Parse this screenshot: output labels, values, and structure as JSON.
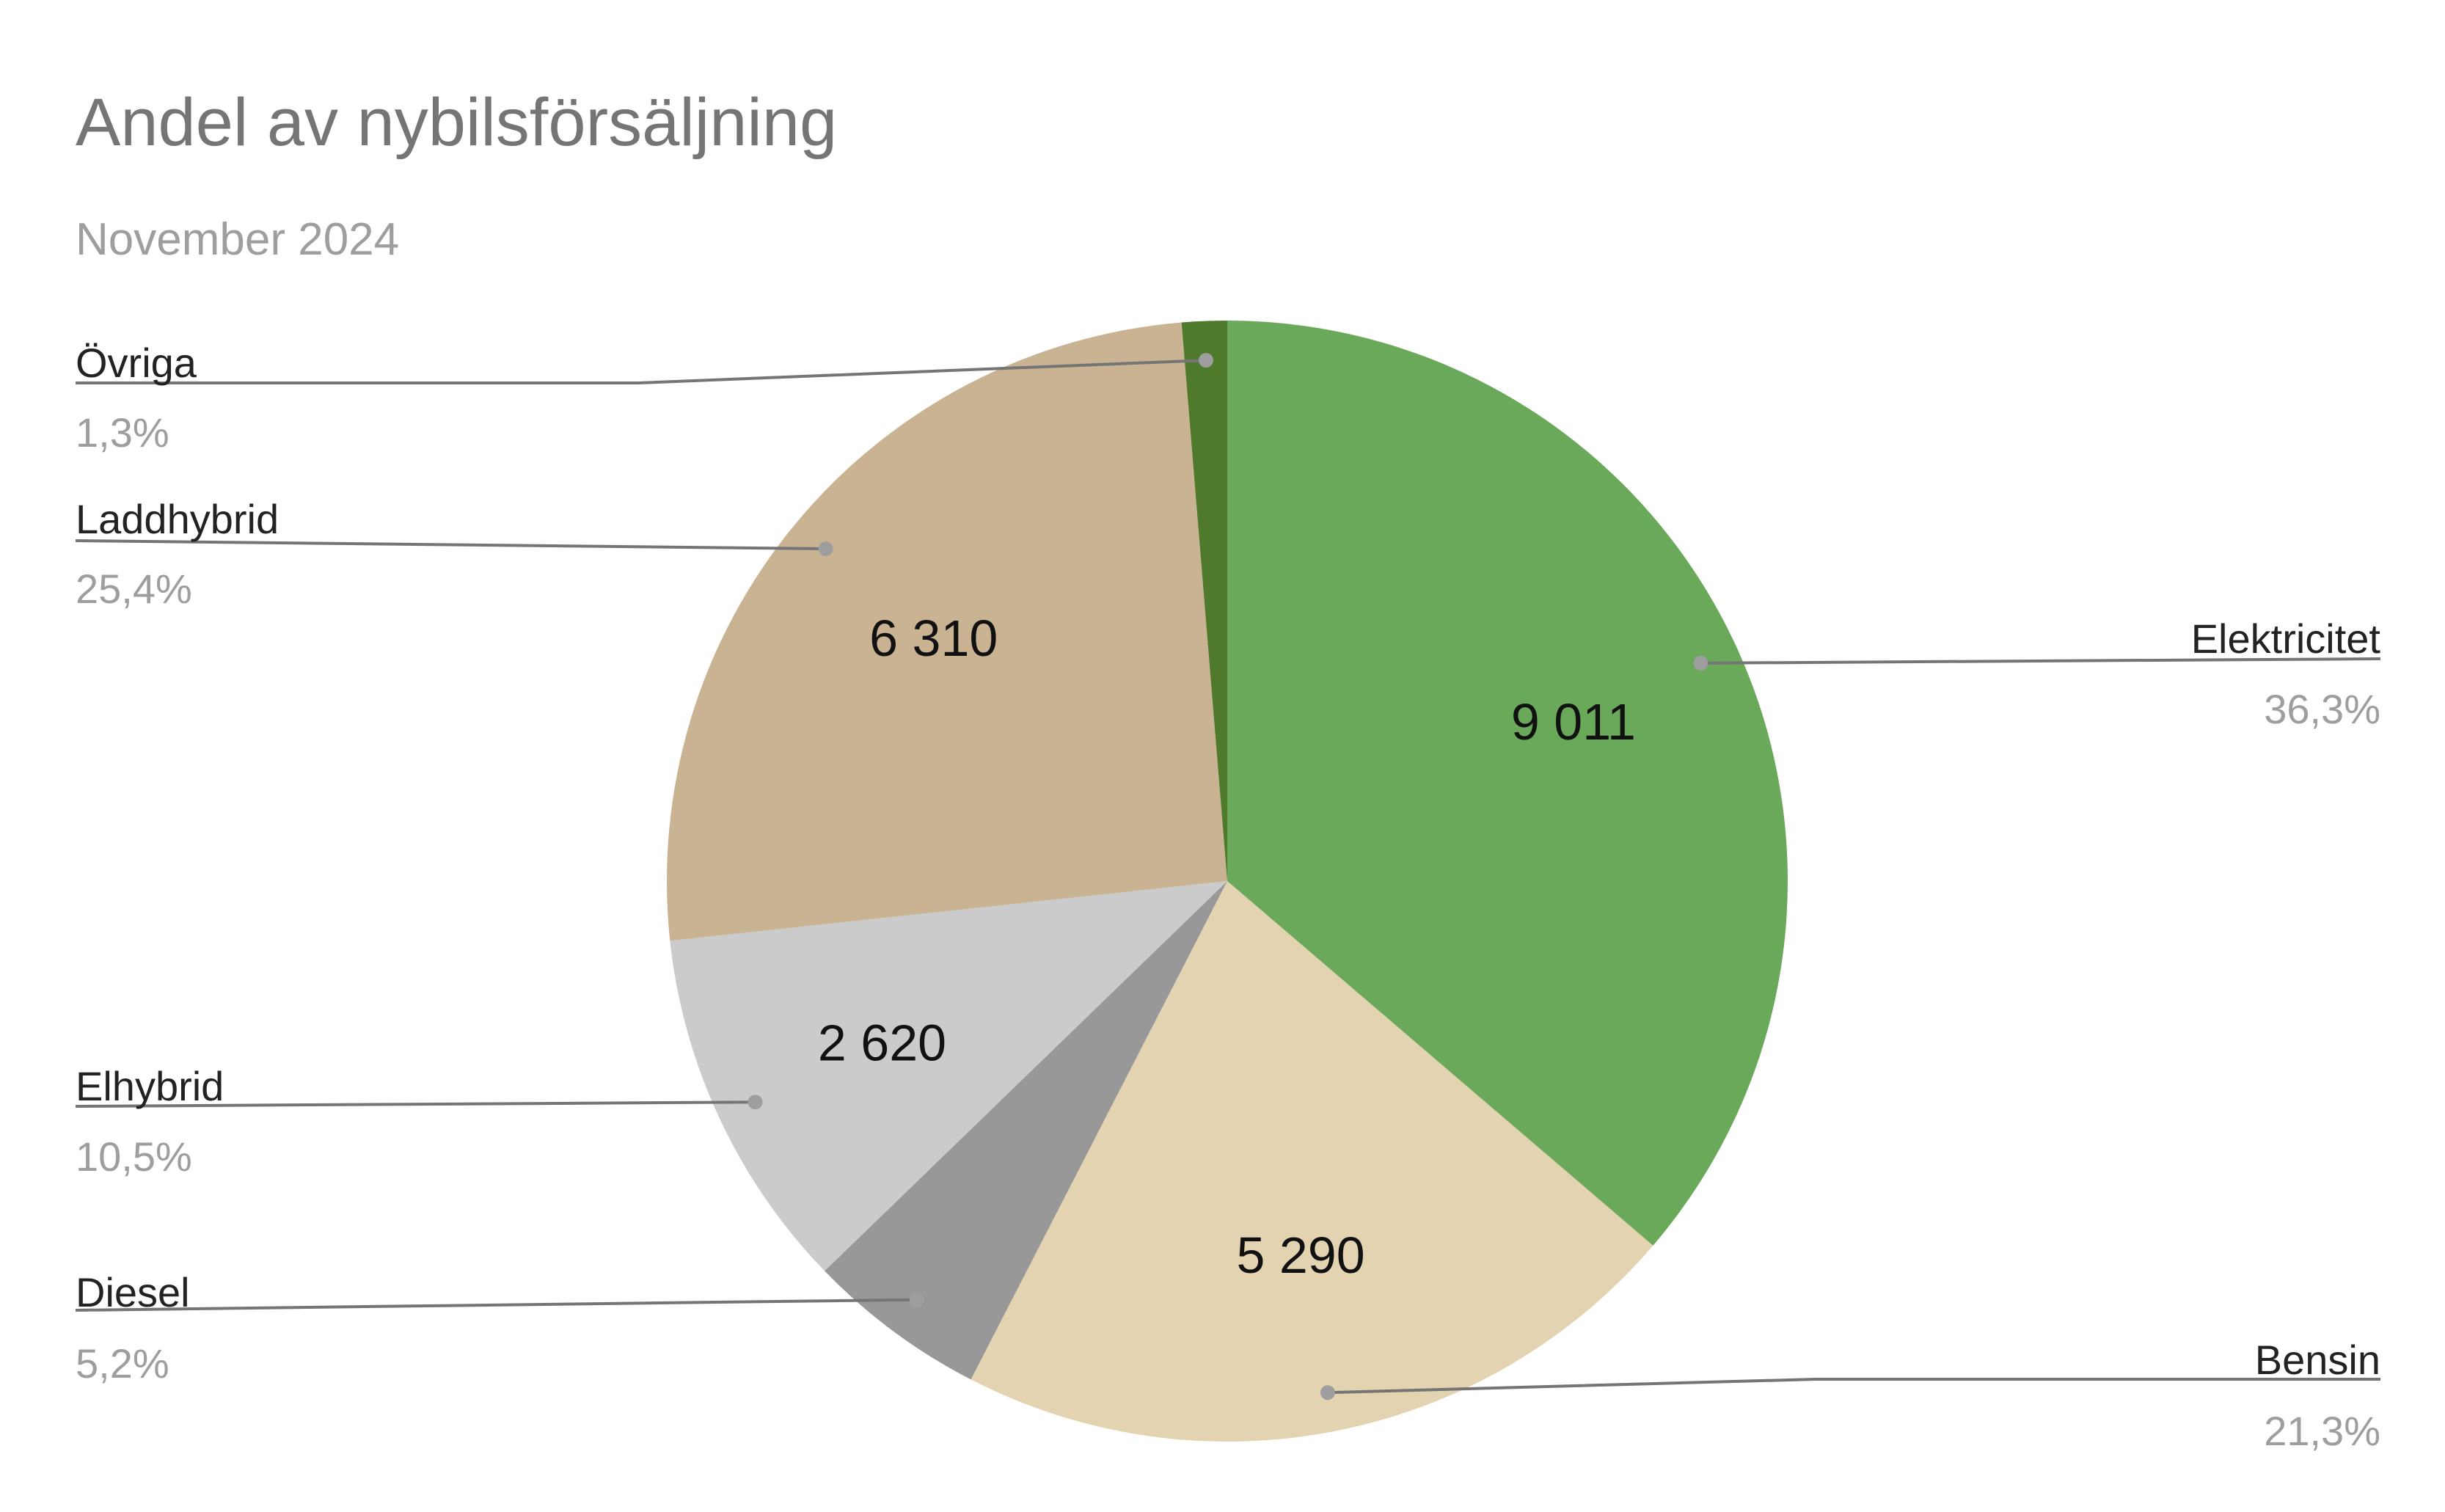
{
  "chart_data": {
    "type": "pie",
    "title": "Andel av nybilsförsäljning",
    "subtitle": "November 2024",
    "slices": [
      {
        "name": "Elektricitet",
        "value": 9011,
        "value_label": "9 011",
        "percent_label": "36,3%",
        "color": "#6aa85a"
      },
      {
        "name": "Bensin",
        "value": 5290,
        "value_label": "5 290",
        "percent_label": "21,3%",
        "color": "#e4d3b0"
      },
      {
        "name": "Diesel",
        "value": 1291,
        "value_label": "",
        "percent_label": "5,2%",
        "color": "#989898"
      },
      {
        "name": "Elhybrid",
        "value": 2620,
        "value_label": "2 620",
        "percent_label": "10,5%",
        "color": "#cbcbcb"
      },
      {
        "name": "Laddhybrid",
        "value": 6310,
        "value_label": "6 310",
        "percent_label": "25,4%",
        "color": "#c9b393"
      },
      {
        "name": "Övriga",
        "value": 323,
        "value_label": "",
        "percent_label": "1,3%",
        "color": "#4f7a2c"
      }
    ],
    "legend": "callout labels",
    "leader_color": "#757575",
    "dot_color": "#9e9e9e"
  }
}
